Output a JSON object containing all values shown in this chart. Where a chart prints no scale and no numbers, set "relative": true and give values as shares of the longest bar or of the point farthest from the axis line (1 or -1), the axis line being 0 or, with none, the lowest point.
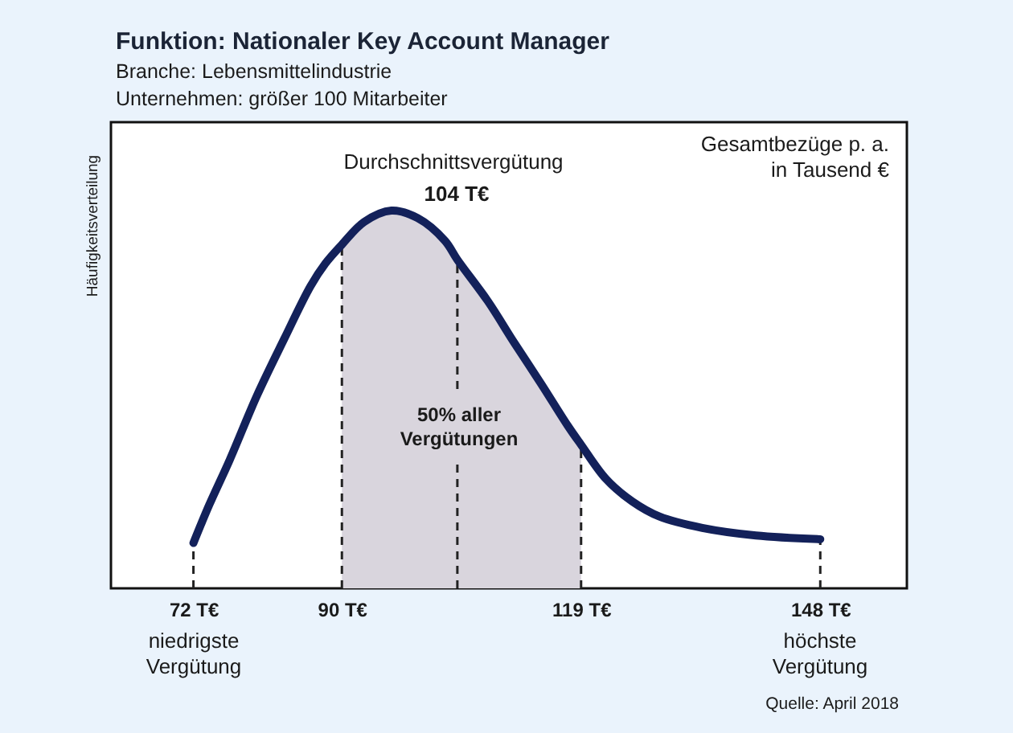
{
  "chart_data": {
    "type": "line",
    "relative": true,
    "title": "Funktion: Nationaler Key Account Manager",
    "subtitle": "Branche: Lebensmittelindustrie\nUnternehmen: größer 100 Mitarbeiter",
    "ylabel": "Häufigkeitsverteilung",
    "x": [
      72,
      73.9,
      76.4,
      79.7,
      83,
      86.2,
      88,
      90,
      92.7,
      96,
      99.2,
      102.5,
      104,
      107.7,
      110.9,
      114.2,
      117.4,
      119,
      122,
      125.2,
      128.5,
      133.7,
      140.2,
      148
    ],
    "series": [
      {
        "type": "area",
        "color": "#d9d5dd",
        "x": [
          90,
          92.7,
          96,
          99.2,
          102.5,
          104,
          107.7,
          110.9,
          114.2,
          117.4,
          119
        ],
        "values": [
          0.91,
          0.97,
          1,
          0.98,
          0.92,
          0.87,
          0.76,
          0.65,
          0.54,
          0.43,
          0.38
        ]
      },
      {
        "color": "#13215a",
        "values": [
          0.12,
          0.22,
          0.34,
          0.51,
          0.66,
          0.8,
          0.86,
          0.91,
          0.97,
          1,
          0.98,
          0.92,
          0.87,
          0.76,
          0.65,
          0.54,
          0.43,
          0.38,
          0.29,
          0.23,
          0.19,
          0.16,
          0.14,
          0.13
        ]
      }
    ],
    "xlim": [
      62,
      158.5
    ],
    "xticks": [
      {
        "value": 72,
        "label": "72 T€"
      },
      {
        "value": 90,
        "label": "90 T€"
      },
      {
        "value": 119,
        "label": "119 T€"
      },
      {
        "value": 148,
        "label": "148 T€"
      }
    ],
    "ref_lines": [
      {
        "axis": "x",
        "value": 72,
        "line_style": "dashed",
        "color": "#222222"
      },
      {
        "axis": "x",
        "value": 90,
        "line_style": "dashed",
        "color": "#222222"
      },
      {
        "axis": "x",
        "value": 104,
        "line_style": "dashed",
        "color": "#222222"
      },
      {
        "axis": "x",
        "value": 119,
        "line_style": "dashed",
        "color": "#222222"
      },
      {
        "axis": "x",
        "value": 148,
        "line_style": "dashed",
        "color": "#222222"
      }
    ],
    "annotations": [
      "Durchschnittsvergütung",
      "104 T€",
      "Gesamtbezüge p. a.\nin Tausend €",
      "50% aller\nVergütungen",
      "niedrigste\nVergütung",
      "höchste\nVergütung",
      "Quelle: April 2018"
    ]
  }
}
